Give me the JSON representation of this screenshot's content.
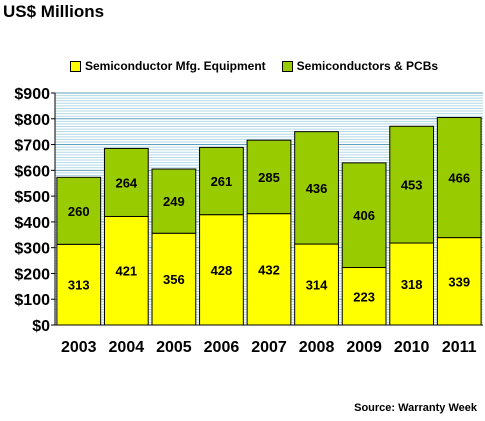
{
  "chart_data": {
    "type": "bar",
    "stacked": true,
    "title": "US$ Millions",
    "categories": [
      "2003",
      "2004",
      "2005",
      "2006",
      "2007",
      "2008",
      "2009",
      "2010",
      "2011"
    ],
    "series": [
      {
        "name": "Semiconductor Mfg. Equipment",
        "color": "#ffff00",
        "values": [
          313,
          421,
          356,
          428,
          432,
          314,
          223,
          318,
          339
        ],
        "labels": [
          "313",
          "421",
          "356",
          "428",
          "432",
          "314",
          "223",
          "318",
          "339"
        ]
      },
      {
        "name": "Semiconductors & PCBs",
        "color": "#99cc00",
        "values": [
          260,
          264,
          249,
          261,
          285,
          436,
          406,
          453,
          466
        ],
        "labels": [
          "260",
          "264",
          "249",
          "261",
          "285",
          "436",
          "406",
          "453",
          "466"
        ]
      }
    ],
    "ylim": [
      0,
      900
    ],
    "yticks": [
      0,
      100,
      200,
      300,
      400,
      500,
      600,
      700,
      800,
      900
    ],
    "ytick_labels": [
      "$0",
      "$100",
      "$200",
      "$300",
      "$400",
      "$500",
      "$600",
      "$700",
      "$800",
      "$900"
    ],
    "grid": true,
    "grid_color": "#99ccdd",
    "legend_position": "top",
    "source": "Source: Warranty Week"
  }
}
